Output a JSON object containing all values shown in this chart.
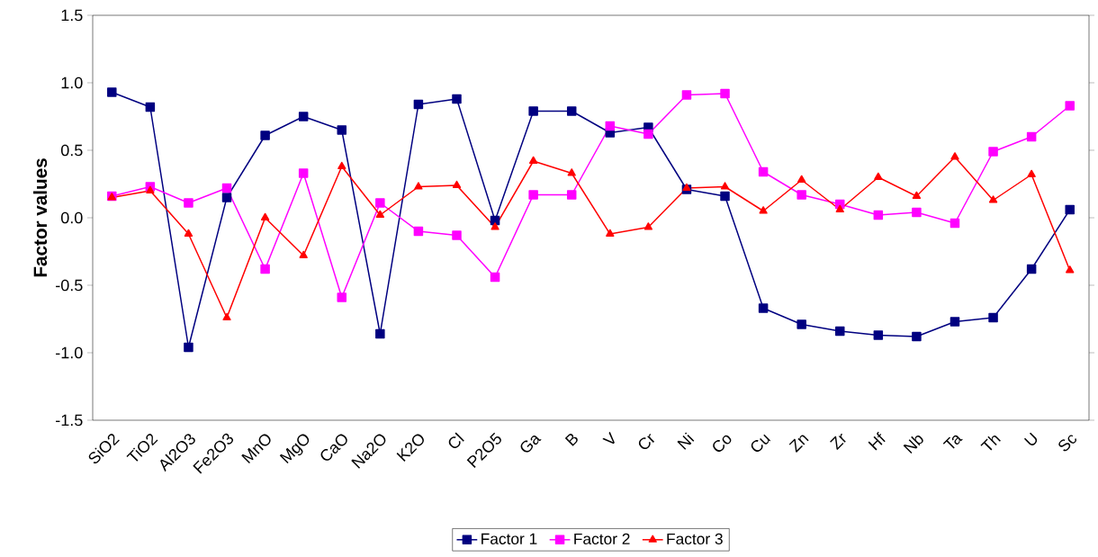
{
  "chart_data": {
    "type": "line",
    "ylabel": "Factor values",
    "categories": [
      "SiO2",
      "TiO2",
      "Al2O3",
      "Fe2O3",
      "MnO",
      "MgO",
      "CaO",
      "Na2O",
      "K2O",
      "Cl",
      "P2O5",
      "Ga",
      "B",
      "V",
      "Cr",
      "Ni",
      "Co",
      "Cu",
      "Zn",
      "Zr",
      "Hf",
      "Nb",
      "Ta",
      "Th",
      "U",
      "Sc"
    ],
    "series": [
      {
        "name": "Factor 1",
        "color": "#000080",
        "marker": "square",
        "values": [
          0.93,
          0.82,
          -0.96,
          0.15,
          0.61,
          0.75,
          0.65,
          -0.86,
          0.84,
          0.88,
          -0.02,
          0.79,
          0.79,
          0.63,
          0.67,
          0.21,
          0.16,
          -0.67,
          -0.79,
          -0.84,
          -0.87,
          -0.88,
          -0.77,
          -0.74,
          -0.38,
          0.06
        ]
      },
      {
        "name": "Factor 2",
        "color": "#ff00ff",
        "marker": "square",
        "values": [
          0.16,
          0.23,
          0.11,
          0.22,
          -0.38,
          0.33,
          -0.59,
          0.11,
          -0.1,
          -0.13,
          -0.44,
          0.17,
          0.17,
          0.68,
          0.62,
          0.91,
          0.92,
          0.34,
          0.17,
          0.1,
          0.02,
          0.04,
          -0.04,
          0.49,
          0.6,
          0.83
        ]
      },
      {
        "name": "Factor 3",
        "color": "#ff0000",
        "marker": "triangle",
        "values": [
          0.15,
          0.2,
          -0.12,
          -0.74,
          0.0,
          -0.28,
          0.38,
          0.02,
          0.23,
          0.24,
          -0.07,
          0.42,
          0.33,
          -0.12,
          -0.07,
          0.22,
          0.23,
          0.05,
          0.28,
          0.06,
          0.3,
          0.16,
          0.45,
          0.13,
          0.32,
          -0.39
        ]
      }
    ],
    "ylim": [
      -1.5,
      1.5
    ],
    "yticks": [
      {
        "value": -1.5,
        "label": "-1.5"
      },
      {
        "value": -1,
        "label": "-1.0"
      },
      {
        "value": -0.5,
        "label": "-0.5"
      },
      {
        "value": 0,
        "label": "0.0"
      },
      {
        "value": 0.5,
        "label": "0.5"
      },
      {
        "value": 1,
        "label": "1.0"
      },
      {
        "value": 1.5,
        "label": "1.5"
      }
    ],
    "grid": false,
    "legend": "bottom",
    "line_style": "solid"
  }
}
